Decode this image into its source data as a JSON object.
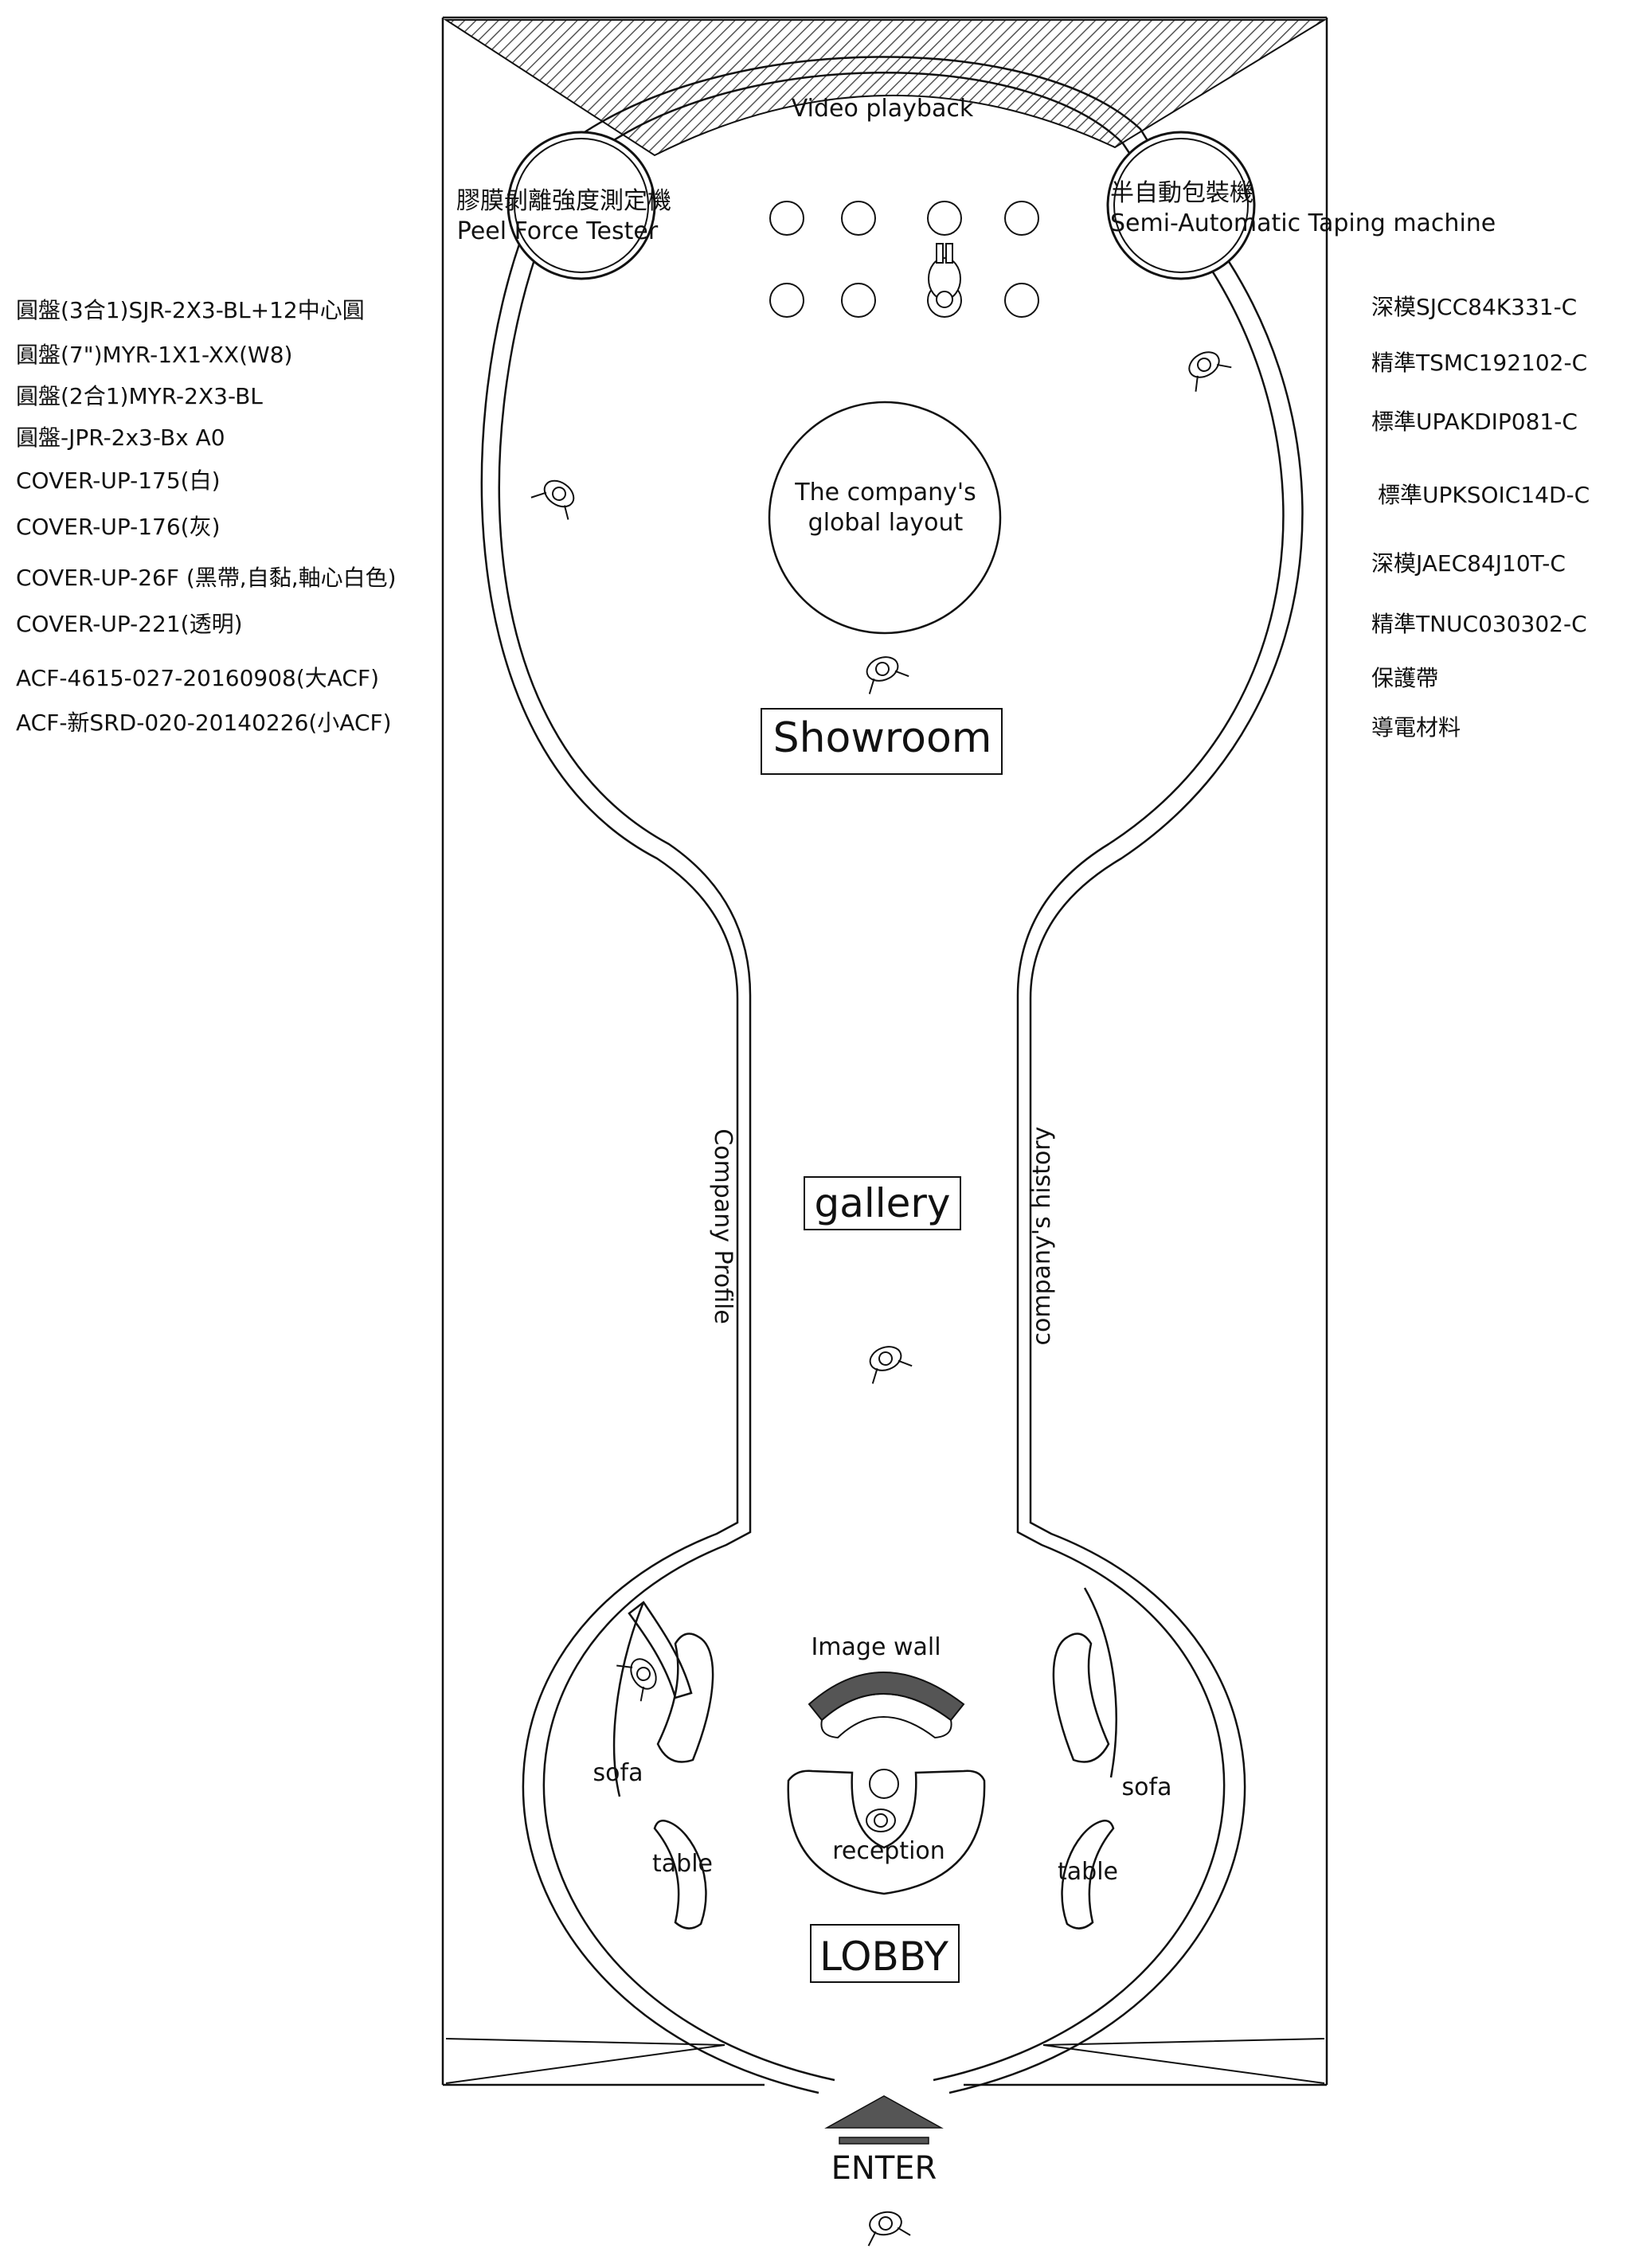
{
  "areas": {
    "showroom": "Showroom",
    "gallery": "gallery",
    "lobby": "LOBBY",
    "enter": "ENTER"
  },
  "labels": {
    "video_playback": "Video playback",
    "peel_tester_zh": "膠膜剝離強度測定機",
    "peel_tester_en": "Peel Force Tester",
    "taping_zh": "半自動包裝機",
    "taping_en": "Semi-Automatic Taping machine",
    "global_layout_line1": "The company's",
    "global_layout_line2": "global layout",
    "company_profile": "Company Profile",
    "company_history": "company's history",
    "image_wall": "Image wall",
    "reception": "reception",
    "sofa_left": "sofa",
    "sofa_right": "sofa",
    "table_left": "table",
    "table_right": "table"
  },
  "left_list": [
    "圓盤(3合1)SJR-2X3-BL+12中心圓",
    "圓盤(7\")MYR-1X1-XX(W8)",
    "圓盤(2合1)MYR-2X3-BL",
    "圓盤-JPR-2x3-Bx A0",
    "COVER-UP-175(白)",
    "COVER-UP-176(灰)",
    "COVER-UP-26F (黑帶,自黏,軸心白色)",
    "COVER-UP-221(透明)",
    "ACF-4615-027-20160908(大ACF)",
    "ACF-新SRD-020-20140226(小ACF)"
  ],
  "right_list": [
    "深模SJCC84K331-C",
    "精準TSMC192102-C",
    "標準UPAKDIP081-C",
    "標準UPKSOIC14D-C",
    "深模JAEC84J10T-C",
    "精準TNUC030302-C",
    "保護帶",
    "導電材料"
  ],
  "colors": {
    "line": "#111111",
    "image_wall_fill": "#555555",
    "enter_arrow": "#555555",
    "hatch": "#555555"
  }
}
